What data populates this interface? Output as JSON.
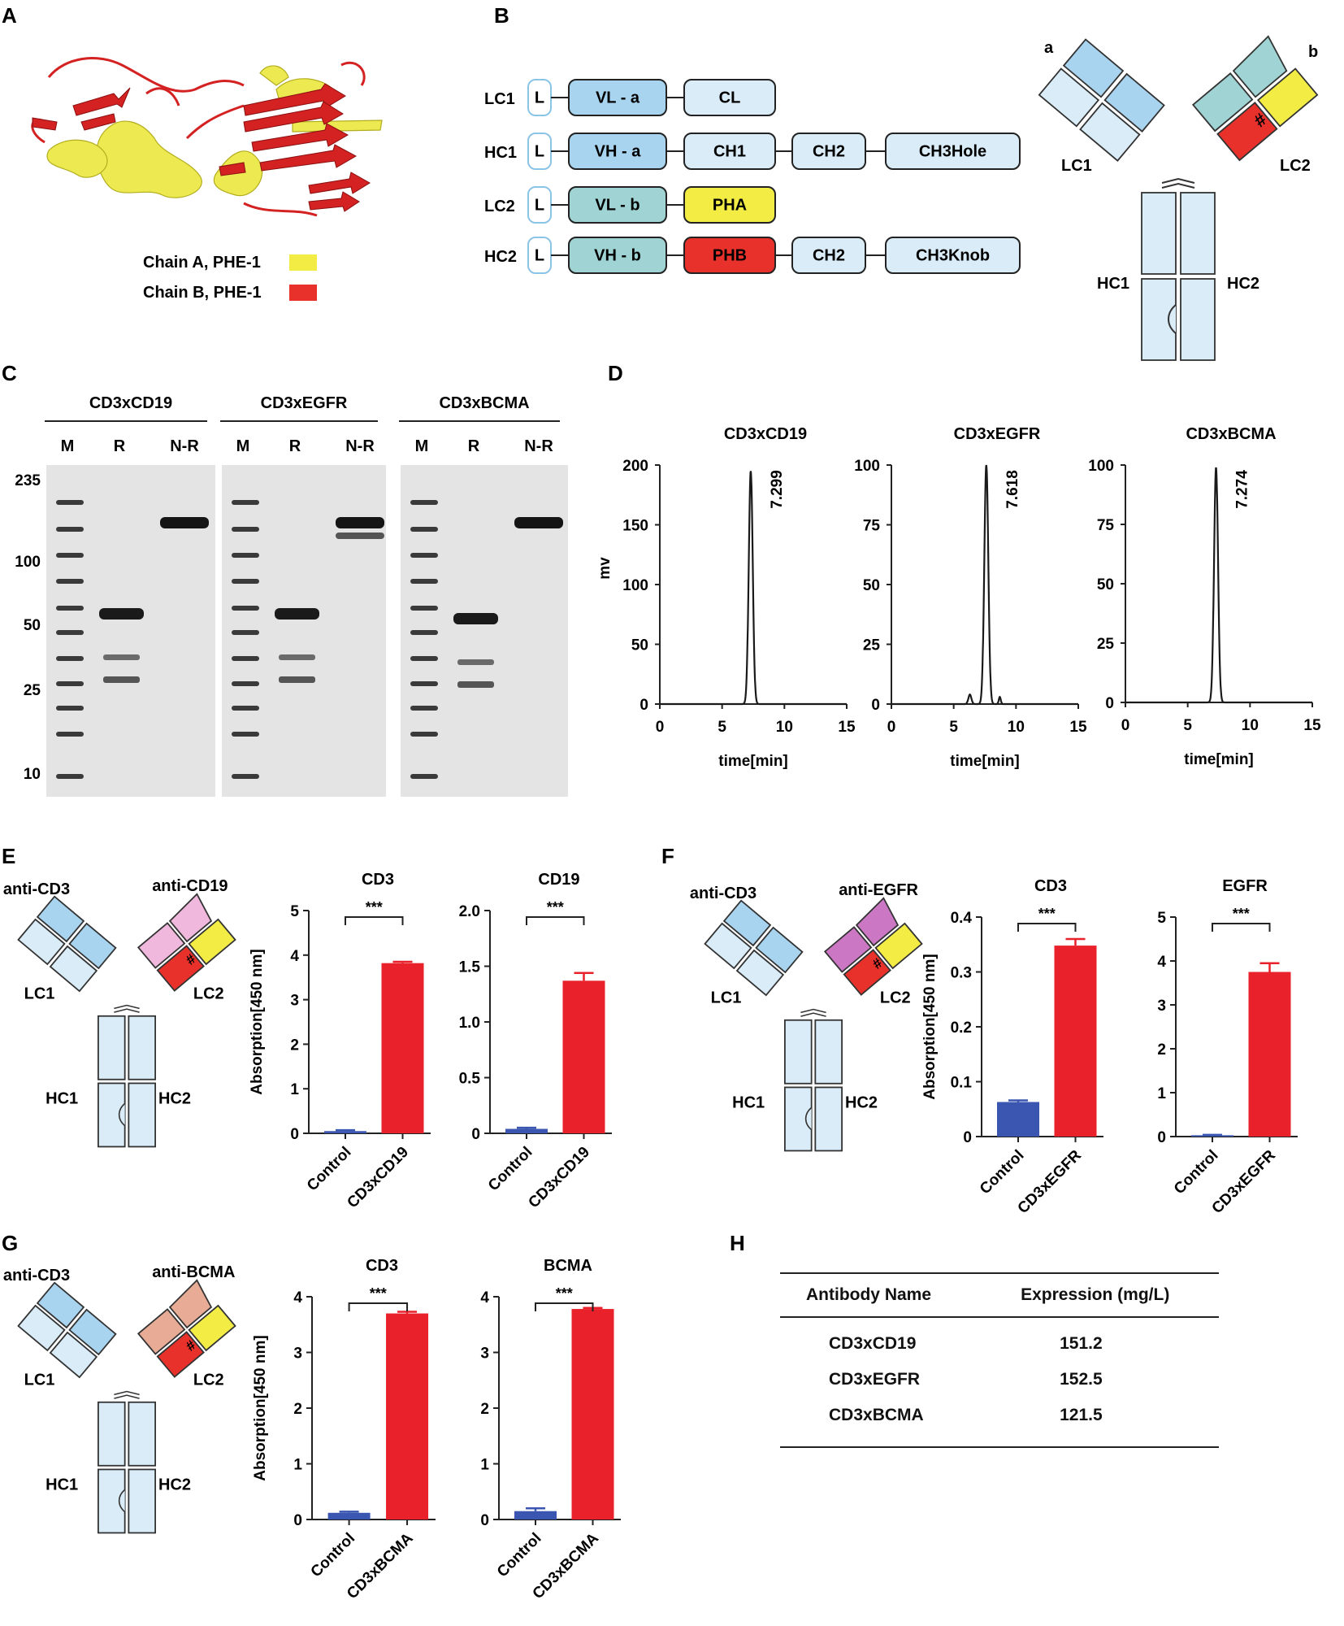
{
  "panels": {
    "A": {
      "letter": "A",
      "legend": [
        {
          "label": "Chain A, PHE-1",
          "color": "#f2ec45"
        },
        {
          "label": "Chain B, PHE-1",
          "color": "#e8312a"
        }
      ]
    },
    "B": {
      "letter": "B",
      "rows": [
        {
          "chain": "LC1",
          "boxes": [
            "L",
            "VL - a",
            "CL"
          ]
        },
        {
          "chain": "HC1",
          "boxes": [
            "L",
            "VH - a",
            "CH1",
            "CH2",
            "CH3Hole"
          ]
        },
        {
          "chain": "LC2",
          "boxes": [
            "L",
            "VL - b",
            "PHA"
          ]
        },
        {
          "chain": "HC2",
          "boxes": [
            "L",
            "VH - b",
            "PHB",
            "CH2",
            "CH3Knob"
          ]
        }
      ],
      "diagram": {
        "arm_a": "a",
        "arm_b": "b",
        "lc1": "LC1",
        "lc2": "LC2",
        "hc1": "HC1",
        "hc2": "HC2"
      }
    },
    "C": {
      "letter": "C",
      "groups": [
        "CD3xCD19",
        "CD3xEGFR",
        "CD3xBCMA"
      ],
      "lanes": [
        "M",
        "R",
        "N-R"
      ],
      "markers": [
        "235",
        "100",
        "50",
        "25",
        "10"
      ]
    },
    "D": {
      "letter": "D"
    },
    "E": {
      "letter": "E",
      "diagram": {
        "left": "anti-CD3",
        "right": "anti-CD19",
        "lc1": "LC1",
        "lc2": "LC2",
        "hc1": "HC1",
        "hc2": "HC2"
      }
    },
    "F": {
      "letter": "F",
      "diagram": {
        "left": "anti-CD3",
        "right": "anti-EGFR",
        "lc1": "LC1",
        "lc2": "LC2",
        "hc1": "HC1",
        "hc2": "HC2"
      }
    },
    "G": {
      "letter": "G",
      "diagram": {
        "left": "anti-CD3",
        "right": "anti-BCMA",
        "lc1": "LC1",
        "lc2": "LC2",
        "hc1": "HC1",
        "hc2": "HC2"
      }
    },
    "H": {
      "letter": "H",
      "columns": [
        "Antibody Name",
        "Expression (mg/L)"
      ],
      "rows": [
        [
          "CD3xCD19",
          "151.2"
        ],
        [
          "CD3xEGFR",
          "152.5"
        ],
        [
          "CD3xBCMA",
          "121.5"
        ]
      ]
    }
  },
  "colors": {
    "light_blue": "#d9ecf8",
    "sky_blue": "#a9d4ef",
    "teal": "#9fd3d4",
    "yellow": "#f2ec45",
    "red": "#e8312a",
    "bar_blue": "#3a56b0",
    "bar_red": "#e8212a",
    "pink_cd19": "#f0b8dc",
    "purple_egfr": "#cc77c4",
    "peach_bcma": "#e8ab95"
  },
  "chart_data": [
    {
      "id": "D1",
      "type": "line",
      "title": "CD3xCD19",
      "xlabel": "time[min]",
      "ylabel": "mv",
      "xlim": [
        0,
        15
      ],
      "ylim": [
        0,
        200
      ],
      "yticks": [
        0,
        50,
        100,
        150,
        200
      ],
      "xticks": [
        0,
        5,
        10,
        15
      ],
      "peak_x": 7.299,
      "peak_y": 195,
      "annotation": "7.299"
    },
    {
      "id": "D2",
      "type": "line",
      "title": "CD3xEGFR",
      "xlabel": "time[min]",
      "ylabel": "",
      "xlim": [
        0,
        15
      ],
      "ylim": [
        0,
        100
      ],
      "yticks": [
        0,
        25,
        50,
        75,
        100
      ],
      "xticks": [
        0,
        5,
        10,
        15
      ],
      "peak_x": 7.618,
      "peak_y": 100,
      "annotation": "7.618"
    },
    {
      "id": "D3",
      "type": "line",
      "title": "CD3xBCMA",
      "xlabel": "time[min]",
      "ylabel": "",
      "xlim": [
        0,
        15
      ],
      "ylim": [
        0,
        100
      ],
      "yticks": [
        0,
        25,
        50,
        75,
        100
      ],
      "xticks": [
        0,
        5,
        10,
        15
      ],
      "peak_x": 7.274,
      "peak_y": 99,
      "annotation": "7.274"
    },
    {
      "id": "E1",
      "type": "bar",
      "title": "CD3",
      "ylabel": "Absorption[450 nm]",
      "categories": [
        "Control",
        "CD3xCD19"
      ],
      "values": [
        0.05,
        3.82
      ],
      "errors": [
        0.02,
        0.03
      ],
      "ylim": [
        0,
        5
      ],
      "yticks": [
        "0",
        "1",
        "2",
        "3",
        "4",
        "5"
      ],
      "sig": "***"
    },
    {
      "id": "E2",
      "type": "bar",
      "title": "CD19",
      "ylabel": "",
      "categories": [
        "Control",
        "CD3xCD19"
      ],
      "values": [
        0.04,
        1.37
      ],
      "errors": [
        0.01,
        0.07
      ],
      "ylim": [
        0,
        2.0
      ],
      "yticks": [
        "0",
        "0.5",
        "1.0",
        "1.5",
        "2.0"
      ],
      "sig": "***"
    },
    {
      "id": "F1",
      "type": "bar",
      "title": "CD3",
      "ylabel": "Absorption[450 nm]",
      "categories": [
        "Control",
        "CD3xEGFR"
      ],
      "values": [
        0.063,
        0.348
      ],
      "errors": [
        0.003,
        0.012
      ],
      "ylim": [
        0,
        0.4
      ],
      "yticks": [
        "0",
        "0.1",
        "0.2",
        "0.3",
        "0.4"
      ],
      "sig": "***"
    },
    {
      "id": "F2",
      "type": "bar",
      "title": "EGFR",
      "ylabel": "",
      "categories": [
        "Control",
        "CD3xEGFR"
      ],
      "values": [
        0.03,
        3.75
      ],
      "errors": [
        0.01,
        0.2
      ],
      "ylim": [
        0,
        5
      ],
      "yticks": [
        "0",
        "1",
        "2",
        "3",
        "4",
        "5"
      ],
      "sig": "***"
    },
    {
      "id": "G1",
      "type": "bar",
      "title": "CD3",
      "ylabel": "Absorption[450 nm]",
      "categories": [
        "Control",
        "CD3xBCMA"
      ],
      "values": [
        0.12,
        3.7
      ],
      "errors": [
        0.02,
        0.03
      ],
      "ylim": [
        0,
        4
      ],
      "yticks": [
        "0",
        "1",
        "2",
        "3",
        "4"
      ],
      "sig": "***"
    },
    {
      "id": "G2",
      "type": "bar",
      "title": "BCMA",
      "ylabel": "",
      "categories": [
        "Control",
        "CD3xBCMA"
      ],
      "values": [
        0.15,
        3.78
      ],
      "errors": [
        0.05,
        0.02
      ],
      "ylim": [
        0,
        4
      ],
      "yticks": [
        "0",
        "1",
        "2",
        "3",
        "4"
      ],
      "sig": "***"
    }
  ]
}
